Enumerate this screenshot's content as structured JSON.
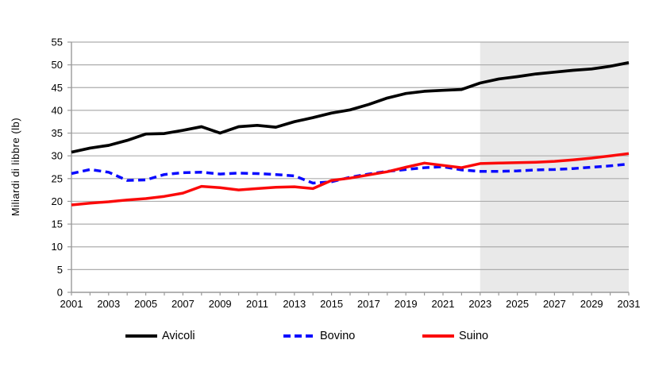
{
  "chart_data": {
    "type": "line",
    "title": "",
    "ylabel": "Miliardi di libbre (lb)",
    "xlabel": "",
    "ylim": [
      0,
      55
    ],
    "ytick_step": 5,
    "ytick_labels": [
      "0",
      "5",
      "10",
      "15",
      "20",
      "25",
      "30",
      "35",
      "40",
      "45",
      "50",
      "55"
    ],
    "xtick_labels": [
      "2001",
      "2003",
      "2005",
      "2007",
      "2009",
      "2011",
      "2013",
      "2015",
      "2017",
      "2019",
      "2021",
      "2023",
      "2025",
      "2027",
      "2029",
      "2031"
    ],
    "x": [
      2001,
      2002,
      2003,
      2004,
      2005,
      2006,
      2007,
      2008,
      2009,
      2010,
      2011,
      2012,
      2013,
      2014,
      2015,
      2016,
      2017,
      2018,
      2019,
      2020,
      2021,
      2022,
      2023,
      2024,
      2025,
      2026,
      2027,
      2028,
      2029,
      2030,
      2031
    ],
    "series": [
      {
        "name": "Avicoli",
        "color": "#000000",
        "style": "solid",
        "values": [
          30.8,
          31.7,
          32.3,
          33.4,
          34.8,
          34.9,
          35.6,
          36.4,
          35.0,
          36.4,
          36.7,
          36.3,
          37.5,
          38.4,
          39.4,
          40.1,
          41.3,
          42.7,
          43.7,
          44.2,
          44.4,
          44.6,
          46.0,
          46.9,
          47.4,
          48.0,
          48.4,
          48.8,
          49.1,
          49.7,
          50.5
        ]
      },
      {
        "name": "Bovino",
        "color": "#0a0aff",
        "style": "dashed",
        "values": [
          26.1,
          27.0,
          26.4,
          24.6,
          24.7,
          25.9,
          26.3,
          26.4,
          26.0,
          26.2,
          26.1,
          25.9,
          25.6,
          24.0,
          24.3,
          25.3,
          26.0,
          26.6,
          27.0,
          27.4,
          27.6,
          26.9,
          26.6,
          26.6,
          26.7,
          26.9,
          27.0,
          27.2,
          27.5,
          27.8,
          28.2
        ]
      },
      {
        "name": "Suino",
        "color": "#fb0a0a",
        "style": "solid",
        "values": [
          19.2,
          19.6,
          19.9,
          20.3,
          20.6,
          21.1,
          21.8,
          23.3,
          23.0,
          22.5,
          22.8,
          23.1,
          23.2,
          22.8,
          24.6,
          25.1,
          25.8,
          26.5,
          27.5,
          28.4,
          27.9,
          27.4,
          28.3,
          28.4,
          28.5,
          28.6,
          28.8,
          29.1,
          29.5,
          30.0,
          30.5
        ]
      }
    ],
    "forecast_start": 2023,
    "forecast_fill": "#e9e9e9",
    "gridline_color": "#adadad",
    "axis_color": "#9a9a9a",
    "grid": true,
    "legend_position": "bottom"
  }
}
